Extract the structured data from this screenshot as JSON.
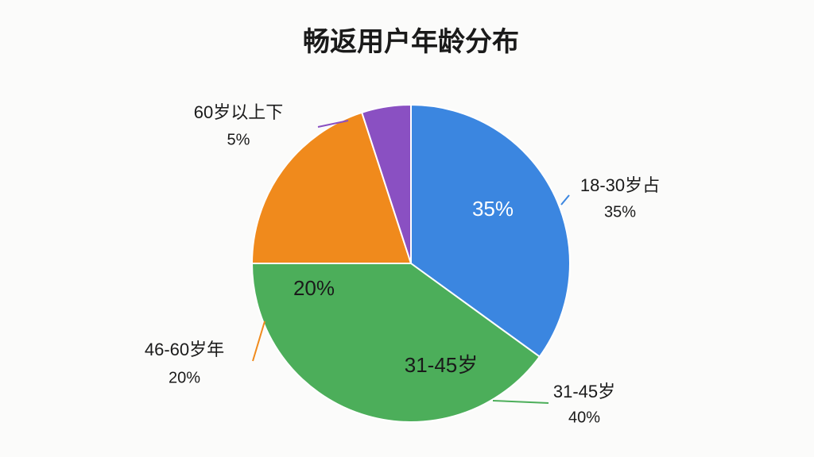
{
  "chart_data": {
    "type": "pie",
    "title": "畅返用户年龄分布",
    "categories": [
      "18-30岁占",
      "31-45岁",
      "46-60岁年",
      "60岁以上下"
    ],
    "values": [
      35,
      40,
      20,
      5
    ],
    "value_labels": [
      "35%",
      "40%",
      "20%",
      "5%"
    ],
    "inner_labels": [
      "35%",
      "31-45岁",
      "20%",
      null
    ],
    "colors": [
      "#3b86e0",
      "#4cae5a",
      "#f08a1c",
      "#8a50c2"
    ]
  }
}
